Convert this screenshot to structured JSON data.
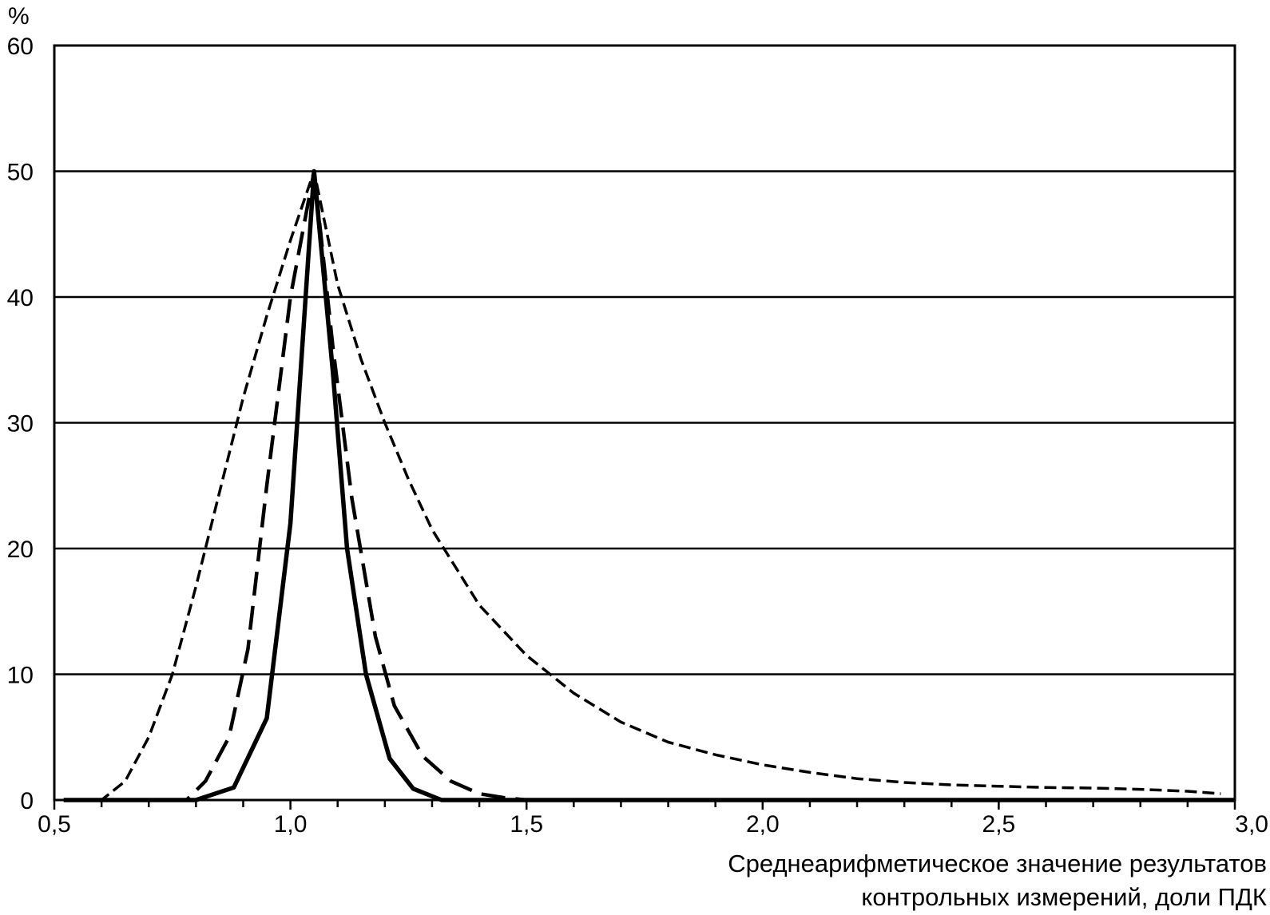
{
  "chart_data": {
    "type": "line",
    "ylabel": "%",
    "xlabel_lines": [
      "Среднеарифметическое значение результатов",
      "контрольных измерений, доли ПДК"
    ],
    "xlim": [
      0.5,
      3.0
    ],
    "ylim": [
      0,
      60
    ],
    "x_ticks": [
      0.5,
      1.0,
      1.5,
      2.0,
      2.5,
      3.0
    ],
    "x_tick_labels": [
      "0,5",
      "1,0",
      "1,5",
      "2,0",
      "2,5",
      "3,0"
    ],
    "x_minor_step": 0.1,
    "y_ticks": [
      0,
      10,
      20,
      30,
      40,
      50,
      60
    ],
    "y_tick_labels": [
      "0",
      "10",
      "20",
      "30",
      "40",
      "50",
      "60"
    ],
    "grid": "horizontal",
    "legend": "none",
    "color": "#000000",
    "series": [
      {
        "style": "solid",
        "x": [
          0.52,
          0.8,
          0.88,
          0.95,
          1.0,
          1.05,
          1.09,
          1.12,
          1.16,
          1.21,
          1.26,
          1.32,
          1.45,
          3.0
        ],
        "y": [
          0,
          0,
          1,
          6.5,
          22,
          50,
          34,
          20,
          10,
          3.3,
          0.9,
          0,
          0,
          0
        ]
      },
      {
        "style": "long-dash",
        "x": [
          0.52,
          0.78,
          0.82,
          0.87,
          0.91,
          0.95,
          1.0,
          1.05,
          1.09,
          1.13,
          1.18,
          1.22,
          1.28,
          1.34,
          1.4,
          1.45,
          1.5,
          3.0
        ],
        "y": [
          0,
          0,
          1.5,
          5,
          12,
          25,
          40,
          50,
          36,
          24,
          13,
          7.5,
          3.5,
          1.5,
          0.5,
          0.2,
          0,
          0
        ]
      },
      {
        "style": "short-dash",
        "x": [
          0.52,
          0.6,
          0.65,
          0.7,
          0.75,
          0.8,
          0.85,
          0.9,
          0.95,
          1.0,
          1.05,
          1.1,
          1.15,
          1.2,
          1.25,
          1.3,
          1.4,
          1.5,
          1.6,
          1.7,
          1.8,
          1.9,
          2.0,
          2.1,
          2.2,
          2.3,
          2.4,
          2.5,
          2.6,
          2.7,
          2.8,
          2.9,
          2.97
        ],
        "y": [
          0,
          0,
          1.5,
          5,
          10,
          17,
          24.5,
          32,
          38.5,
          44.5,
          50,
          41,
          35,
          30,
          25.5,
          21.5,
          15.5,
          11.5,
          8.5,
          6.2,
          4.6,
          3.6,
          2.8,
          2.2,
          1.7,
          1.4,
          1.2,
          1.1,
          1.0,
          0.95,
          0.85,
          0.7,
          0.5
        ]
      }
    ]
  }
}
